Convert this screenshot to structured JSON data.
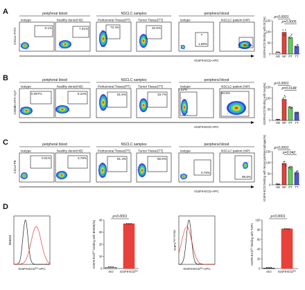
{
  "rows": [
    {
      "letter": "A",
      "groups": [
        {
          "label": "peripheral blood",
          "span": [
            0,
            1
          ]
        },
        {
          "label": "NSCLC samples",
          "span": [
            2,
            3
          ]
        },
        {
          "label": "peripheral blood",
          "span": [
            4,
            5
          ]
        }
      ],
      "ylabel": "CD11c-FITC",
      "xlabel": "IGSF9-ECD-APC",
      "panels": [
        {
          "title": "Isotype",
          "pct": "0.1%",
          "pct_pos": "top-right"
        },
        {
          "title": "healthy donor(HD)",
          "pct": "7.31%",
          "pct_pos": "top-right"
        },
        {
          "title": "Peritumoral Tissue(PT)",
          "pct": "72.4%",
          "pct_pos": "top-right"
        },
        {
          "title": "Tumor Tissue(TT)",
          "pct": "32.5%",
          "pct_pos": "top-right"
        },
        {
          "title": "Isotype",
          "pct": "1.88%",
          "pct_pos": "bottom-right"
        },
        {
          "title": "NSCLC patient (NP)",
          "pct": "99.6%",
          "pct_pos": "bottom-right"
        }
      ],
      "bar_ylabel": "IGSF9-ECD binding with DC(%)",
      "bar": {
        "categories": [
          "HD",
          "NP",
          "PT",
          "TT"
        ],
        "values": [
          8,
          98,
          75,
          35
        ],
        "ylim": [
          0,
          150
        ],
        "ticks": [
          "0",
          "50",
          "100",
          "150"
        ],
        "pvalues": [
          "p<0.0001",
          "p=0.0005"
        ]
      }
    },
    {
      "letter": "B",
      "groups": [
        {
          "label": "peripheral blood",
          "span": [
            0,
            1
          ]
        },
        {
          "label": "NSCLC samples",
          "span": [
            2,
            3
          ]
        },
        {
          "label": "peripheral blood",
          "span": [
            4,
            5
          ]
        }
      ],
      "ylabel": "CD66b-APC-Cy7",
      "xlabel": "IGSF9-ECD-APC",
      "panels": [
        {
          "title": "Isotype",
          "pct": "0.057%",
          "pct_pos": "top-left"
        },
        {
          "title": "healthy donor(HD)",
          "pct": "5.22%",
          "pct_pos": "top-right"
        },
        {
          "title": "Peritumoral Tissue(PT)",
          "pct": "61.6%",
          "pct_pos": "top-right"
        },
        {
          "title": "Tumor Tissue(TT)",
          "pct": "33.7%",
          "pct_pos": "top-right"
        },
        {
          "title": "Isotype",
          "pct": "1.52%",
          "pct_pos": "top-left"
        },
        {
          "title": "NSCLC patient (NP)",
          "pct": "94.5%",
          "pct_pos": "top-left"
        }
      ],
      "bar_ylabel": "IGSF9-ECD binding with Neu(%)",
      "bar": {
        "categories": [
          "HD",
          "NP",
          "PT",
          "TT"
        ],
        "values": [
          5,
          95,
          60,
          35
        ],
        "ylim": [
          0,
          150
        ],
        "ticks": [
          "0",
          "50",
          "100",
          "150"
        ],
        "pvalues": [
          "p<0.0001",
          "p=0.0148"
        ]
      }
    },
    {
      "letter": "C",
      "groups": [
        {
          "label": "peripheral blood",
          "span": [
            0,
            1
          ]
        },
        {
          "label": "NSCLC samples",
          "span": [
            2,
            3
          ]
        },
        {
          "label": "peripheral blood",
          "span": [
            4,
            5
          ]
        }
      ],
      "ylabel": "CD14-PE",
      "xlabel": "IGSF9-ECD-APC",
      "panels": [
        {
          "title": "Isotype",
          "pct": "0.01%",
          "pct_pos": "top-right"
        },
        {
          "title": "healthy donor(HD)",
          "pct": "3.78%",
          "pct_pos": "top-right"
        },
        {
          "title": "Peritumoral Tissue(PT)",
          "pct": "81.4%",
          "pct_pos": "top-right"
        },
        {
          "title": "Tumor Tissue(TT)",
          "pct": "56.6%",
          "pct_pos": "top-right"
        },
        {
          "title": "Isotype",
          "pct": "0.78%",
          "pct_pos": "bottom-right"
        },
        {
          "title": "NSCLC patient (NP)",
          "pct": "99.8%",
          "pct_pos": "bottom-right"
        }
      ],
      "bar_ylabel": "IGSF9-ECD binding with Monocyte/Macrophage(%)",
      "bar": {
        "categories": [
          "HD",
          "NP",
          "PT",
          "TT"
        ],
        "values": [
          4,
          97,
          80,
          55
        ],
        "ylim": [
          0,
          150
        ],
        "ticks": [
          "0",
          "50",
          "100",
          "150"
        ],
        "pvalues": [
          "p<0.0001",
          "p=0.042"
        ]
      }
    }
  ],
  "rowD": {
    "letter": "D",
    "hist1": {
      "ylabel": "BMDM",
      "xlabel": "IGSF9-ECD^hu-APC"
    },
    "bar1": {
      "ylabel": "IGSF9-ECD^hu binding with BMDM(%)",
      "categories": [
        "ISO",
        "IGSF9-ECD^hu"
      ],
      "values": [
        1,
        37
      ],
      "ylim": [
        0,
        40
      ],
      "ticks": [
        "0",
        "10",
        "20",
        "30",
        "40"
      ],
      "pvalue": "p<0.0001"
    },
    "hist2": {
      "ylabel": "THP1^macrophage",
      "xlabel": "IGSF9-ECD^hu-APC"
    },
    "bar2": {
      "ylabel": "IGSF9-ECD^hu binding with THP1^macrophage(%)",
      "categories": [
        "ISO",
        "IGSF9-ECD^hu"
      ],
      "values": [
        1,
        82
      ],
      "ylim": [
        0,
        100
      ],
      "ticks": [
        "0",
        "20",
        "40",
        "60",
        "80",
        "100"
      ],
      "pvalue": "p<0.0001"
    }
  },
  "colors": {
    "HD": "#ffffff",
    "NP": "#e8403a",
    "PT": "#5ad35a",
    "TT": "#4a55d8",
    "ISO": "#ffffff",
    "hu": "#e8403a",
    "hist_red": "#e8403a",
    "hist_black": "#222222"
  }
}
